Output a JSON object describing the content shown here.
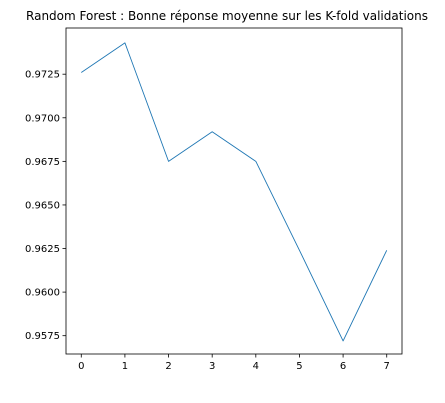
{
  "chart_data": {
    "type": "line",
    "title": "Random Forest : Bonne réponse moyenne sur les K-fold validations",
    "xlabel": "",
    "ylabel": "",
    "x": [
      0,
      1,
      2,
      3,
      4,
      5,
      6,
      7
    ],
    "series": [
      {
        "values": [
          0.9726,
          0.9743,
          0.9675,
          0.9692,
          0.9675,
          0.9624,
          0.9572,
          0.9624
        ],
        "color": "#1f77b4"
      }
    ],
    "xlim": [
      -0.35,
      7.35
    ],
    "ylim": [
      0.95645,
      0.97515
    ],
    "x_ticks": [
      0,
      1,
      2,
      3,
      4,
      5,
      6,
      7
    ],
    "x_tick_labels": [
      "0",
      "1",
      "2",
      "3",
      "4",
      "5",
      "6",
      "7"
    ],
    "y_ticks": [
      0.9575,
      0.96,
      0.9625,
      0.965,
      0.9675,
      0.97,
      0.9725
    ],
    "y_tick_labels": [
      "0.9575",
      "0.9600",
      "0.9625",
      "0.9650",
      "0.9675",
      "0.9700",
      "0.9725"
    ],
    "grid": false,
    "legend": "none"
  }
}
